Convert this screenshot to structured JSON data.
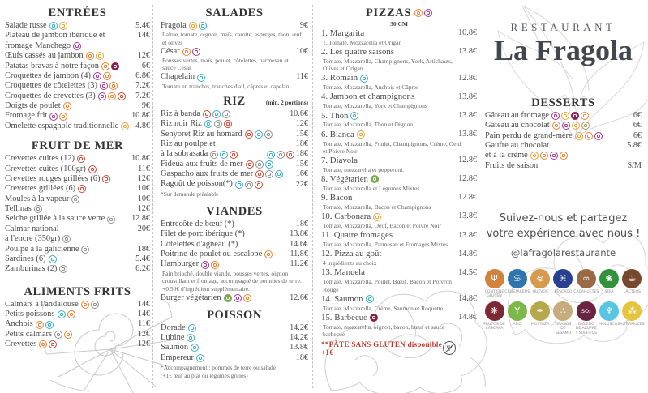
{
  "brand": {
    "kicker": "RESTAURANT",
    "name": "La Fragola"
  },
  "social": {
    "line1": "Suivez-nous et partagez",
    "line2": "votre expérience avec nous !",
    "handle": "@lafragolarestaurante"
  },
  "palette": {
    "orange": "#ee8233",
    "yellow": "#e9a63a",
    "purple": "#a43a96",
    "cyan": "#3aafc9",
    "red": "#cb4a33",
    "gray": "#8f8f8f",
    "maroon": "#8a1f52",
    "green": "#7aa84c",
    "tan": "#b09a5e"
  },
  "filled_icon_colors": [
    "maroon",
    "green"
  ],
  "sections": {
    "entrees": {
      "title": "ENTRÉES",
      "items": [
        {
          "name": "Salade russe",
          "icons": [
            "cyan",
            "yellow"
          ],
          "price": "5.4€"
        },
        {
          "name": "Plateau de jambon ibérique et",
          "price": "14€"
        },
        {
          "name": "fromage Manchego",
          "icons": [
            "purple"
          ]
        },
        {
          "name": "Œufs cassés au jambon",
          "icons": [
            "orange",
            "yellow"
          ],
          "price": "12€"
        },
        {
          "name": "Patatas bravas à notre façon",
          "icons": [
            "orange",
            "maroon"
          ],
          "price": "6€"
        },
        {
          "name": "Croquettes de jambon (4)",
          "icons": [
            "purple",
            "orange"
          ],
          "price": "6.8€"
        },
        {
          "name": "Croquettes de côtelettes (3)",
          "icons": [
            "purple",
            "orange"
          ],
          "price": "7.2€"
        },
        {
          "name": "Croquettes de crevettes (3)",
          "icons": [
            "purple",
            "orange",
            "red"
          ],
          "price": "7.2€"
        },
        {
          "name": "Doigts de poulet",
          "icons": [
            "orange"
          ],
          "price": "9€"
        },
        {
          "name": "Fromage frit",
          "icons": [
            "purple",
            "orange"
          ],
          "price": "10.8€"
        },
        {
          "name": "Omelette espagnole traditionnelle",
          "icons": [
            "yellow"
          ],
          "price": "4.8€"
        }
      ]
    },
    "fruit_de_mer": {
      "title": "FRUIT DE MER",
      "items": [
        {
          "name": "Crevettes cuites (12)",
          "icons": [
            "red"
          ],
          "price": "10.8€"
        },
        {
          "name": "Crevettes cuites (100gr)",
          "icons": [
            "red"
          ],
          "price": "11€"
        },
        {
          "name": "Crevettes rouges grillées (6)",
          "icons": [
            "red"
          ],
          "price": "12€"
        },
        {
          "name": "Crevettes grillées (6)",
          "icons": [
            "red"
          ],
          "price": "10€"
        },
        {
          "name": "Moules à la vapeur",
          "icons": [
            "gray"
          ],
          "price": "10€"
        },
        {
          "name": "Tellinas",
          "icons": [
            "gray"
          ],
          "price": "12€"
        },
        {
          "name": "Seiche grillée à la sauce verte",
          "icons": [
            "gray"
          ],
          "price": "12.8€"
        },
        {
          "name": "Calmar national",
          "price": "20€"
        },
        {
          "name": "à l'encre (350gr)",
          "icons": [
            "gray"
          ]
        },
        {
          "name": "Poulpe à la galicienne",
          "icons": [
            "gray"
          ],
          "price": "18€"
        },
        {
          "name": "Sardines (6)",
          "icons": [
            "cyan"
          ],
          "price": "5.4€"
        },
        {
          "name": "Zamburinas (2)",
          "icons": [
            "gray"
          ],
          "price": "6.2€"
        }
      ]
    },
    "aliments_frits": {
      "title": "ALIMENTS FRITS",
      "items": [
        {
          "name": "Calmars à l'andalouse",
          "icons": [
            "orange",
            "gray"
          ],
          "price": "14€"
        },
        {
          "name": "Petits poissons",
          "icons": [
            "cyan",
            "orange"
          ],
          "price": "14€"
        },
        {
          "name": "Anchois",
          "icons": [
            "orange",
            "cyan"
          ],
          "price": "11€"
        },
        {
          "name": "Petits calmars",
          "icons": [
            "gray",
            "orange"
          ],
          "price": "12€"
        },
        {
          "name": "Crevettes",
          "icons": [
            "orange",
            "red"
          ],
          "price": "12€"
        }
      ]
    },
    "salades": {
      "title": "SALADES",
      "items": [
        {
          "name": "Fragola",
          "icons": [
            "yellow",
            "cyan"
          ],
          "price": "9€",
          "descs": [
            "Laitue, tomate, oignon, maïs, carotte, asperges, thon, œuf et olives"
          ]
        },
        {
          "name": "César",
          "icons": [
            "orange",
            "purple"
          ],
          "price": "10€",
          "descs": [
            "Pousses vertes, maïs, poulet, côtelettes, parmesan et sauce César"
          ]
        },
        {
          "name": "Chapelain",
          "icons": [
            "cyan"
          ],
          "price": "11€",
          "descs": [
            "Tomate en tranches, tranches d'ail, câpres et capelan"
          ]
        }
      ]
    },
    "riz": {
      "title": "RIZ",
      "subtitle": "(min. 2 portions)",
      "items": [
        {
          "name": "Riz à banda",
          "icons": [
            "red",
            "cyan",
            "gray"
          ],
          "price": "10.6€"
        },
        {
          "name": "Riz noir Riz",
          "icons": [
            "cyan",
            "gray",
            "red"
          ],
          "price": "12€"
        },
        {
          "name": "Senyoret Riz au homard",
          "icons": [
            "red",
            "cyan",
            "gray"
          ],
          "price": "15€"
        },
        {
          "name": "Riz au poulpe et",
          "price": "18€"
        },
        {
          "name": "à la sobrasada",
          "icons": [
            "gray",
            "cyan",
            "red"
          ],
          "right_icons": [
            "cyan",
            "gray",
            "red"
          ],
          "price": "18€"
        },
        {
          "name": "Fideua aux fruits de mer",
          "icons": [
            "red",
            "gray",
            "cyan"
          ],
          "price": "15€"
        },
        {
          "name": "Gaspacho aux fruits de mer",
          "icons": [
            "red",
            "gray",
            "cyan"
          ],
          "price": "16€"
        },
        {
          "name": "Ragoût de poisson(*)",
          "icons": [
            "cyan",
            "gray",
            "red"
          ],
          "price": "22€"
        }
      ],
      "notes": [
        "*Sur demande préalable"
      ]
    },
    "viandes": {
      "title": "VIANDES",
      "items": [
        {
          "name": "Entrecôte de bœuf (*)",
          "price": "18€"
        },
        {
          "name": "Filet de porc ibérique (*)",
          "price": "13.8€"
        },
        {
          "name": "Côtelettes d'agneau (*)",
          "price": "14.6€"
        },
        {
          "name": "Poitrine de poulet ou escalope",
          "icons": [
            "orange"
          ],
          "price": "11.8€"
        },
        {
          "name": "Hamburger",
          "icons": [
            "purple",
            "orange"
          ],
          "price": "11.2€",
          "descs": [
            "Pain brioché, double viande, pousses vertes, oignon croustillant et fromage, accompagné de pommes de terre.",
            "+0.50€ d'ingrédient supplémentaire."
          ]
        },
        {
          "name": "Burger végétarien",
          "icons": [
            "green",
            "purple",
            "orange"
          ],
          "price": "12.6€"
        }
      ]
    },
    "poisson": {
      "title": "POISSON",
      "items": [
        {
          "name": "Dorade",
          "icons": [
            "cyan"
          ],
          "price": "14.2€"
        },
        {
          "name": "Lubine",
          "icons": [
            "cyan"
          ],
          "price": "14.2€"
        },
        {
          "name": "Saumon",
          "icons": [
            "cyan"
          ],
          "price": "13.8€"
        },
        {
          "name": "Empereur",
          "icons": [
            "cyan"
          ],
          "price": "18€"
        }
      ],
      "notes": [
        "*Accompagnement : pommes de terre ou salade",
        "(+1€ œuf au plat ou légumes grillés)"
      ]
    },
    "pizzas": {
      "title": "PIZZAS",
      "title_icons": [
        "orange",
        "purple"
      ],
      "size_note": "30 CM",
      "items": [
        {
          "name": "1. Margarita",
          "price": "10.8€",
          "descs": [
            "1. Tomate, Mozzarella et Origan"
          ]
        },
        {
          "name": "2. Les quatre saisons",
          "price": "13.8€",
          "descs": [
            "Tomate, Mozzarella, Champignons, York, Artichauts, Olives et Origan"
          ]
        },
        {
          "name": "3. Romain",
          "icons": [
            "cyan"
          ],
          "price": "12.8€",
          "descs": [
            "Tomate, Mozzarella, Anchois et Câpres"
          ]
        },
        {
          "name": "4. Jambon et champignons",
          "price": "13.8€",
          "descs": [
            "Tomate, Mozzarella, York et Champignons"
          ]
        },
        {
          "name": "5. Thon",
          "icons": [
            "cyan"
          ],
          "price": "13.8€",
          "descs": [
            "Tomate, Mozzarella, Thon et Oignon"
          ]
        },
        {
          "name": "6. Bianca",
          "icons": [
            "yellow"
          ],
          "price": "13.8€",
          "descs": [
            "Tomate, Mozzarella, Poulet, Champignons, Crème, Oeuf et Poivre Noir"
          ]
        },
        {
          "name": "7. Diavola",
          "price": "12.8€",
          "descs": [
            "Tomate, mozzarella et pepperoni."
          ]
        },
        {
          "name": "8. Végétarien",
          "icons": [
            "green"
          ],
          "price": "12.8€",
          "descs": [
            "Tomate, Mozzarella et Légumes Mixtes"
          ]
        },
        {
          "name": "9. Bacon",
          "price": "12.8€",
          "descs": [
            "Tomate, Mozzarella, Bacon et Champignons"
          ]
        },
        {
          "name": "10. Carbonara",
          "icons": [
            "yellow"
          ],
          "price": "13.8€",
          "descs": [
            "Tomate, Mozzarella, Oeuf, Bacon et Poivre Noir"
          ]
        },
        {
          "name": "11. Quatre fromages",
          "price": "13.8€",
          "descs": [
            "Tomate, Mozzarella, Parmesan et Fromages Mixtes"
          ]
        },
        {
          "name": "12. Pizza au goût",
          "price": "14.8€",
          "descs": [
            "4 ingrédients au choix"
          ]
        },
        {
          "name": "13. Manuela",
          "price": "14.5€",
          "descs": [
            "Tomate, Mozzarella, Poulet, Bœuf, Bacon et Poivron Rouge"
          ]
        },
        {
          "name": "14. Saumon",
          "icons": [
            "cyan"
          ],
          "price": "14.8€",
          "descs": [
            "Tomate, Mozzarella, Crème, Saumon et Roquette"
          ]
        },
        {
          "name": "15. Barbecue",
          "icons": [
            "maroon"
          ],
          "price": "14.8€",
          "descs": [
            "Tomate, mozzarella, oignon, bacon, bœuf et sauce barbecue"
          ]
        }
      ],
      "footnote": "**PÂTE SANS GLUTEN disponible +1€"
    },
    "desserts": {
      "title": "DESSERTS",
      "items": [
        {
          "name": "Gâteau au fromage",
          "icons": [
            "purple",
            "yellow",
            "maroon",
            "orange"
          ],
          "price": "6€"
        },
        {
          "name": "Gâteau au chocolat",
          "icons": [
            "orange",
            "purple",
            "yellow",
            "tan"
          ],
          "price": "6€"
        },
        {
          "name": "Pain perdu de grand-mère",
          "icons": [
            "yellow",
            "orange",
            "purple"
          ],
          "price": "6€"
        },
        {
          "name": "Gaufre au chocolat",
          "price": "5.8€"
        },
        {
          "name": "et à la crème",
          "icons": [
            "yellow",
            "orange",
            "purple",
            "orange"
          ]
        },
        {
          "name": "Fruits de saison",
          "price": "S/M"
        }
      ]
    }
  },
  "allergen_legend": [
    [
      {
        "id": "gluten",
        "label": "Contiene gluten",
        "color": "#d1833c",
        "glyph": "Ψ"
      },
      {
        "id": "crustaceos",
        "label": "Crustáceos",
        "color": "#2e74ad",
        "glyph": "♋"
      },
      {
        "id": "huevos",
        "label": "Huevos",
        "color": "#d59a4d",
        "glyph": "⊚"
      },
      {
        "id": "pescado",
        "label": "Pescado",
        "color": "#27418f",
        "glyph": "♓"
      },
      {
        "id": "cacahuetes",
        "label": "Cacahuetes",
        "color": "#9a6a45",
        "glyph": "∞"
      },
      {
        "id": "soja",
        "label": "Soja",
        "color": "#33913c",
        "glyph": "❀"
      },
      {
        "id": "lacteos",
        "label": "Lácteos",
        "color": "#77492c",
        "glyph": "☕"
      }
    ],
    [
      {
        "id": "frutos-de-cascara",
        "label": "Frutos de cáscara",
        "color": "#7d2832",
        "glyph": "❋"
      },
      {
        "id": "apio",
        "label": "Apio",
        "color": "#7db84a",
        "glyph": "Υ"
      },
      {
        "id": "mostaza",
        "label": "Mostaza",
        "color": "#b5a94b",
        "glyph": "✒"
      },
      {
        "id": "granos-de-sesamo",
        "label": "Granos de sésamo",
        "color": "#c6ab7e",
        "glyph": "∴"
      },
      {
        "id": "dioxido-de-azufre-y-sulfitos",
        "label": "Dióxido de azufre y sulfitos",
        "color": "#6b2342",
        "glyph": "SO₂",
        "small": true
      },
      {
        "id": "moluscos",
        "label": "Moluscos",
        "color": "#57c6e3",
        "glyph": "♆"
      },
      {
        "id": "altramuces",
        "label": "Altramuces",
        "color": "#e6c53e",
        "glyph": "⁂"
      }
    ]
  ]
}
